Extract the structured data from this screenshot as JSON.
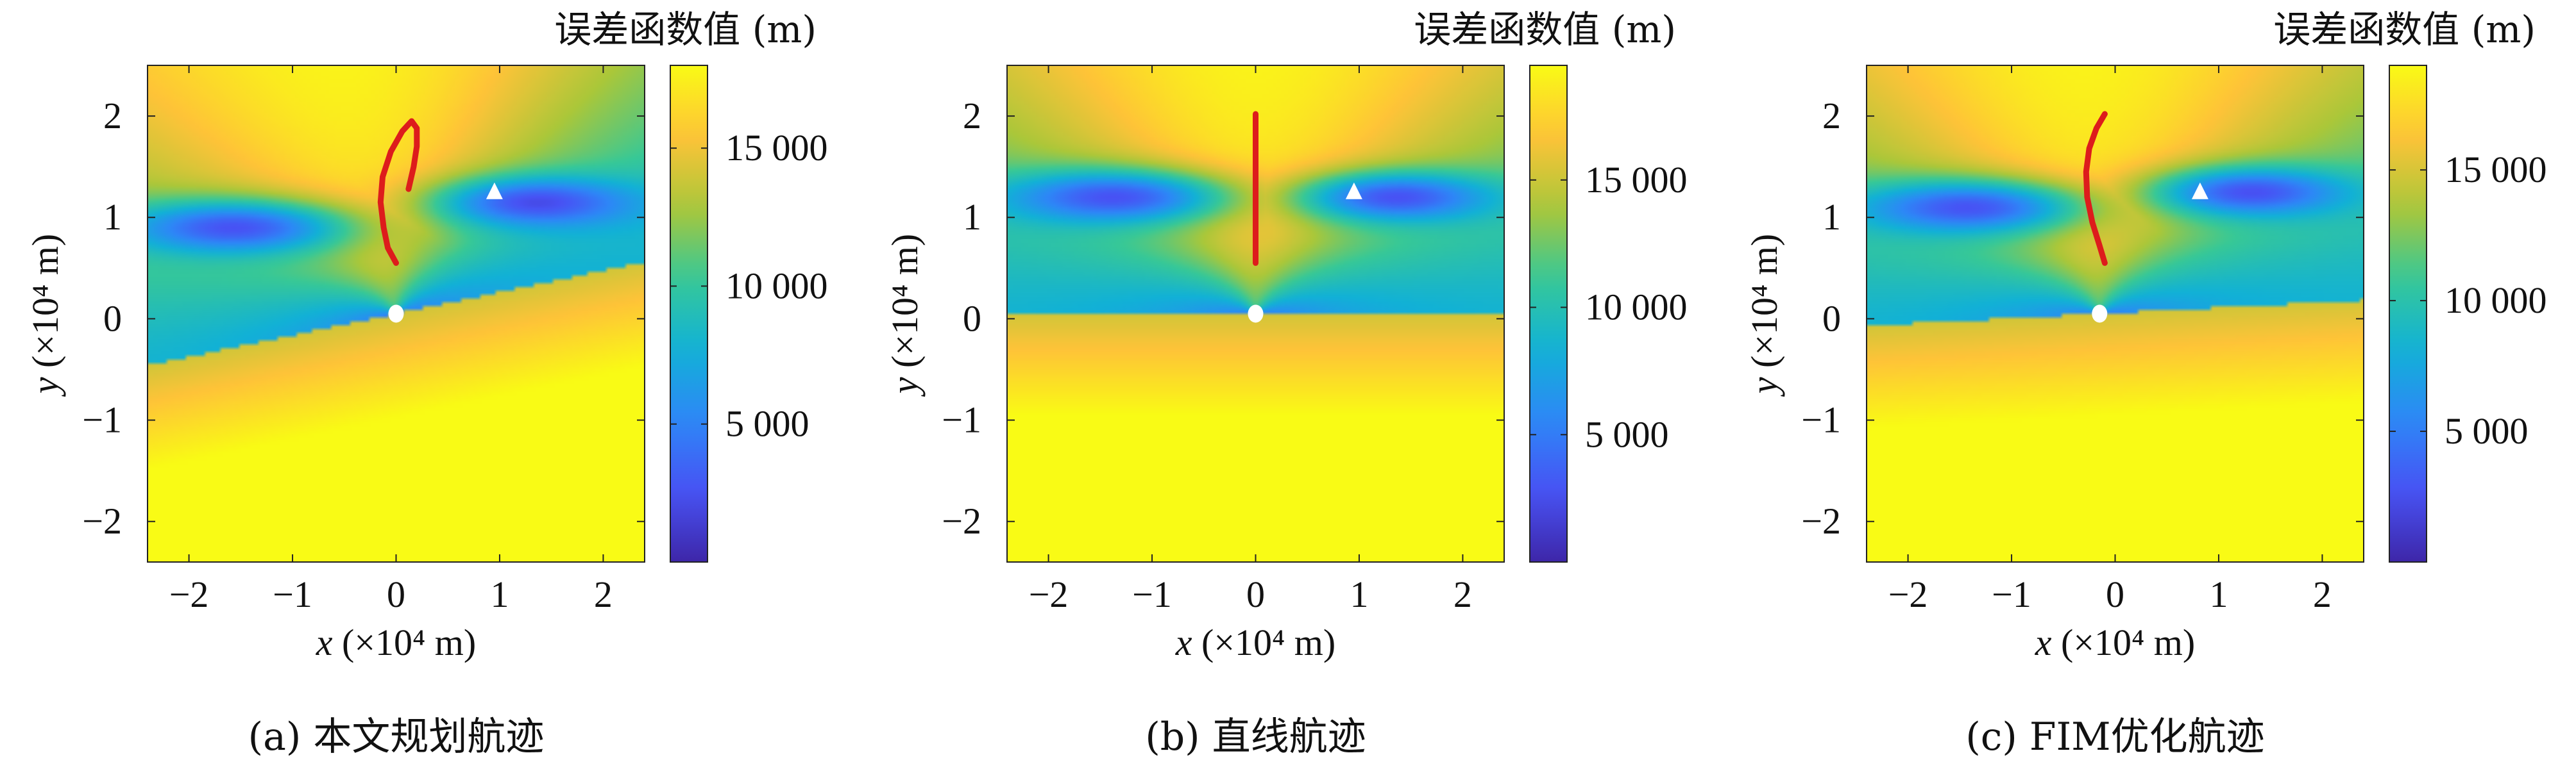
{
  "chart_data": [
    {
      "type": "heatmap",
      "caption": "(a) 本文规划航迹",
      "colorbar_title": "误差函数值 (m)",
      "colorbar_ticks": [
        5000,
        10000,
        15000
      ],
      "colorbar_tick_labels": [
        "5 000",
        "10 000",
        "15 000"
      ],
      "zlim": [
        0,
        18000
      ],
      "colormap": "parula",
      "xlabel_var": "x",
      "xlabel_unit": "(×10⁴ m)",
      "ylabel_var": "y",
      "ylabel_unit": "(×10⁴ m)",
      "xlim": [
        -2.4,
        2.4
      ],
      "ylim": [
        -2.4,
        2.5
      ],
      "xticks": [
        -2,
        -1,
        0,
        1,
        2
      ],
      "yticks": [
        -2,
        -1,
        0,
        1,
        2
      ],
      "field": {
        "dir_angle_deg": 12,
        "valley_pos": [
          1.35,
          1.15
        ],
        "valley_neg": [
          -1.55,
          0.9
        ]
      },
      "trajectory": {
        "color": "#dd1c1c",
        "x": [
          0.0,
          -0.08,
          -0.12,
          -0.15,
          -0.13,
          -0.05,
          0.06,
          0.15,
          0.2,
          0.2,
          0.17,
          0.12
        ],
        "y": [
          0.55,
          0.7,
          0.9,
          1.15,
          1.4,
          1.65,
          1.85,
          1.95,
          1.88,
          1.7,
          1.5,
          1.28
        ]
      },
      "sensor_circle": [
        0.0,
        0.05
      ],
      "target_triangle": [
        0.95,
        1.25
      ]
    },
    {
      "type": "heatmap",
      "caption": "(b) 直线航迹",
      "colorbar_title": "误差函数值 (m)",
      "colorbar_ticks": [
        5000,
        10000,
        15000
      ],
      "colorbar_tick_labels": [
        "5 000",
        "10 000",
        "15 000"
      ],
      "zlim": [
        0,
        19500
      ],
      "colormap": "parula",
      "xlabel_var": "x",
      "xlabel_unit": "(×10⁴ m)",
      "ylabel_var": "y",
      "ylabel_unit": "(×10⁴ m)",
      "xlim": [
        -2.4,
        2.4
      ],
      "ylim": [
        -2.4,
        2.5
      ],
      "xticks": [
        -2,
        -1,
        0,
        1,
        2
      ],
      "yticks": [
        -2,
        -1,
        0,
        1,
        2
      ],
      "field": {
        "dir_angle_deg": 0,
        "valley_pos": [
          1.35,
          1.2
        ],
        "valley_neg": [
          -1.35,
          1.2
        ]
      },
      "trajectory": {
        "color": "#dd1c1c",
        "x": [
          0.0,
          0.0
        ],
        "y": [
          0.55,
          2.02
        ]
      },
      "sensor_circle": [
        0.0,
        0.05
      ],
      "target_triangle": [
        0.95,
        1.25
      ]
    },
    {
      "type": "heatmap",
      "caption": "(c) FIM优化航迹",
      "colorbar_title": "误差函数值 (m)",
      "colorbar_ticks": [
        5000,
        10000,
        15000
      ],
      "colorbar_tick_labels": [
        "5 000",
        "10 000",
        "15 000"
      ],
      "zlim": [
        0,
        19000
      ],
      "colormap": "parula",
      "xlabel_var": "x",
      "xlabel_unit": "(×10⁴ m)",
      "ylabel_var": "y",
      "ylabel_unit": "(×10⁴ m)",
      "xlim": [
        -2.4,
        2.4
      ],
      "ylim": [
        -2.4,
        2.5
      ],
      "xticks": [
        -2,
        -1,
        0,
        1,
        2
      ],
      "yticks": [
        -2,
        -1,
        0,
        1,
        2
      ],
      "field": {
        "dir_angle_deg": 3,
        "valley_pos": [
          1.3,
          1.25
        ],
        "valley_neg": [
          -1.4,
          1.1
        ]
      },
      "trajectory": {
        "color": "#dd1c1c",
        "x": [
          -0.1,
          -0.15,
          -0.22,
          -0.27,
          -0.28,
          -0.25,
          -0.18,
          -0.1
        ],
        "y": [
          0.55,
          0.72,
          0.95,
          1.2,
          1.45,
          1.68,
          1.88,
          2.02
        ]
      },
      "sensor_circle": [
        -0.15,
        0.05
      ],
      "target_triangle": [
        0.82,
        1.25
      ]
    }
  ]
}
